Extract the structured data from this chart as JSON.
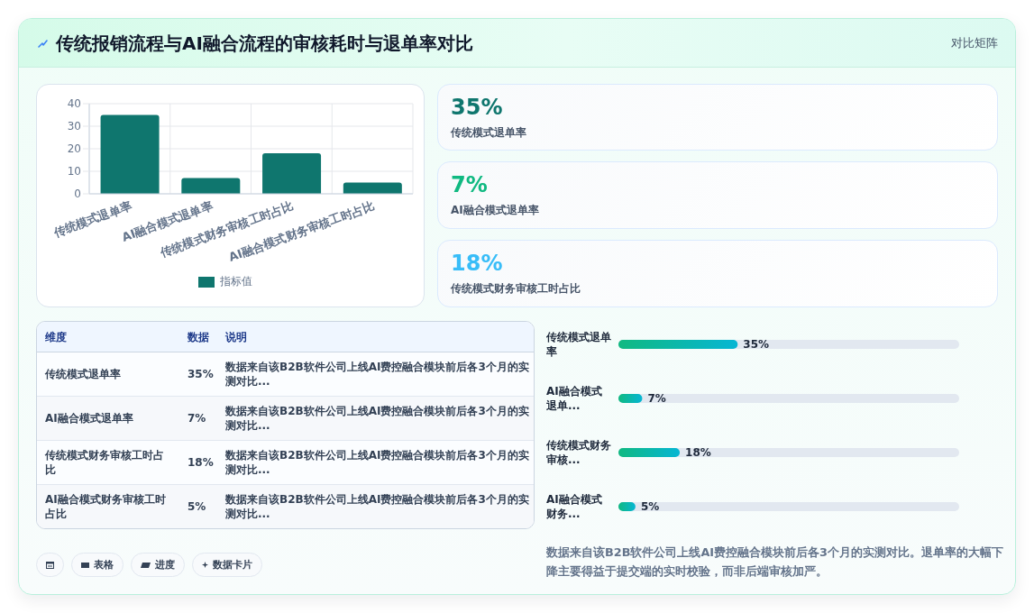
{
  "chart_data": [
    {
      "type": "other",
      "title": "传统报销流程与AI融合流程的审核耗时与退单率对比",
      "subtitle": "对比矩阵"
    },
    {
      "type": "bar",
      "categories": [
        "传统模式退单率",
        "AI融合模式退单率",
        "传统模式财务审核工时占比",
        "AI融合模式财务审核工时占比"
      ],
      "series": [
        {
          "name": "指标值",
          "color": "#0f766e",
          "values": [
            35,
            7,
            18,
            5
          ]
        }
      ],
      "ylim": [
        0,
        40
      ],
      "yticks": [
        0,
        10,
        20,
        30,
        40
      ],
      "grid": true,
      "legend": "bottom"
    },
    {
      "type": "other",
      "categories": [
        "传统模式退单率",
        "AI融合模式退单率",
        "传统模式财务审核工时占比"
      ],
      "value_labels": [
        "35%",
        "7%",
        "18%"
      ]
    },
    {
      "type": "other",
      "categories": [
        "传统模式退单率",
        "AI融合模式退单率",
        "传统模式财务审核工时占比",
        "AI融合模式财务审核工时占比"
      ],
      "value_labels": [
        "35%",
        "7%",
        "18%",
        "5%"
      ],
      "annotations": [
        "维度",
        "数据",
        "说明",
        "数据来自该B2B软件公司上线AI费控融合模块前后各3个月的实测对比...",
        "数据来自该B2B软件公司上线AI费控融合模块前后各3个月的实测对比...",
        "数据来自该B2B软件公司上线AI费控融合模块前后各3个月的实测对比...",
        "数据来自该B2B软件公司上线AI费控融合模块前后各3个月的实测对比..."
      ]
    },
    {
      "type": "bar",
      "orientation": "horizontal",
      "categories": [
        "传统模式退单率",
        "AI融合模式退单...",
        "传统模式财务审核...",
        "AI融合模式财务..."
      ],
      "values": [
        35,
        7,
        18,
        5
      ],
      "color": "#10b981",
      "xlim": [
        0,
        100
      ],
      "tick_labels": "y",
      "value_labels": [
        "35%",
        "7%",
        "18%",
        "5%"
      ],
      "annotations": [
        "数据来自该B2B软件公司上线AI费控融合模块前后各3个月的实测对比。退单率的大幅下降主要得益于提交端的实时校验，而非后端审核加严。"
      ]
    },
    {
      "type": "other",
      "annotations": [
        "表格",
        "进度",
        "数据卡片"
      ]
    }
  ]
}
